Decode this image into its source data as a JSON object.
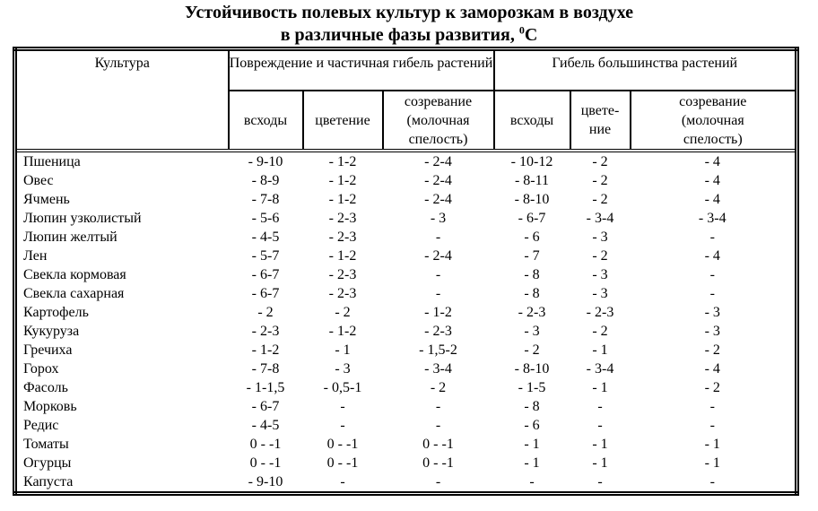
{
  "title": {
    "line1": "Устойчивость полевых культур к заморозкам в воздухе",
    "line2_prefix": "в различные фазы развития, ",
    "line2_sup": "0",
    "line2_suffix": "С"
  },
  "table": {
    "corner_header": "Культура",
    "group_headers": [
      "Повреждение и частичная гибель растений",
      "Гибель большинства растений"
    ],
    "sub_headers": [
      "всходы",
      "цветение",
      "созревание\n(молочная\nспелость)",
      "всходы",
      "цвете-\nние",
      "созревание\n(молочная\nспелость)"
    ],
    "rows": [
      [
        "Пшеница",
        "- 9-10",
        "- 1-2",
        "- 2-4",
        "- 10-12",
        "- 2",
        "- 4"
      ],
      [
        "Овес",
        "- 8-9",
        "- 1-2",
        "- 2-4",
        "- 8-11",
        "- 2",
        "- 4"
      ],
      [
        "Ячмень",
        "- 7-8",
        "- 1-2",
        "- 2-4",
        "- 8-10",
        "- 2",
        "- 4"
      ],
      [
        "Люпин узколистый",
        "- 5-6",
        "- 2-3",
        "- 3",
        "- 6-7",
        "- 3-4",
        "- 3-4"
      ],
      [
        "Люпин желтый",
        "- 4-5",
        "- 2-3",
        "-",
        "- 6",
        "- 3",
        "-"
      ],
      [
        "Лен",
        "- 5-7",
        "- 1-2",
        "- 2-4",
        "- 7",
        "- 2",
        "- 4"
      ],
      [
        "Свекла кормовая",
        "- 6-7",
        "- 2-3",
        "-",
        "- 8",
        "- 3",
        "-"
      ],
      [
        "Свекла сахарная",
        "- 6-7",
        "- 2-3",
        "-",
        "- 8",
        "- 3",
        "-"
      ],
      [
        "Картофель",
        "- 2",
        "- 2",
        "- 1-2",
        "- 2-3",
        "- 2-3",
        "- 3"
      ],
      [
        "Кукуруза",
        "- 2-3",
        "- 1-2",
        "- 2-3",
        "- 3",
        "- 2",
        "- 3"
      ],
      [
        "Гречиха",
        "- 1-2",
        "- 1",
        "- 1,5-2",
        "- 2",
        "- 1",
        "- 2"
      ],
      [
        "Горох",
        "- 7-8",
        "- 3",
        "- 3-4",
        "- 8-10",
        "- 3-4",
        "- 4"
      ],
      [
        "Фасоль",
        "- 1-1,5",
        "- 0,5-1",
        "- 2",
        "- 1-5",
        "- 1",
        "- 2"
      ],
      [
        "Морковь",
        "- 6-7",
        "-",
        "-",
        "- 8",
        "-",
        "-"
      ],
      [
        "Редис",
        "- 4-5",
        "-",
        "-",
        "- 6",
        "-",
        "-"
      ],
      [
        "Томаты",
        "0 - -1",
        "0 - -1",
        "0 - -1",
        "- 1",
        "- 1",
        "- 1"
      ],
      [
        "Огурцы",
        "0 - -1",
        "0 - -1",
        "0 - -1",
        "- 1",
        "- 1",
        "- 1"
      ],
      [
        "Капуста",
        "- 9-10",
        "-",
        "-",
        "-",
        "-",
        "-"
      ]
    ]
  },
  "colors": {
    "text": "#000000",
    "border": "#000000",
    "background": "#ffffff"
  }
}
